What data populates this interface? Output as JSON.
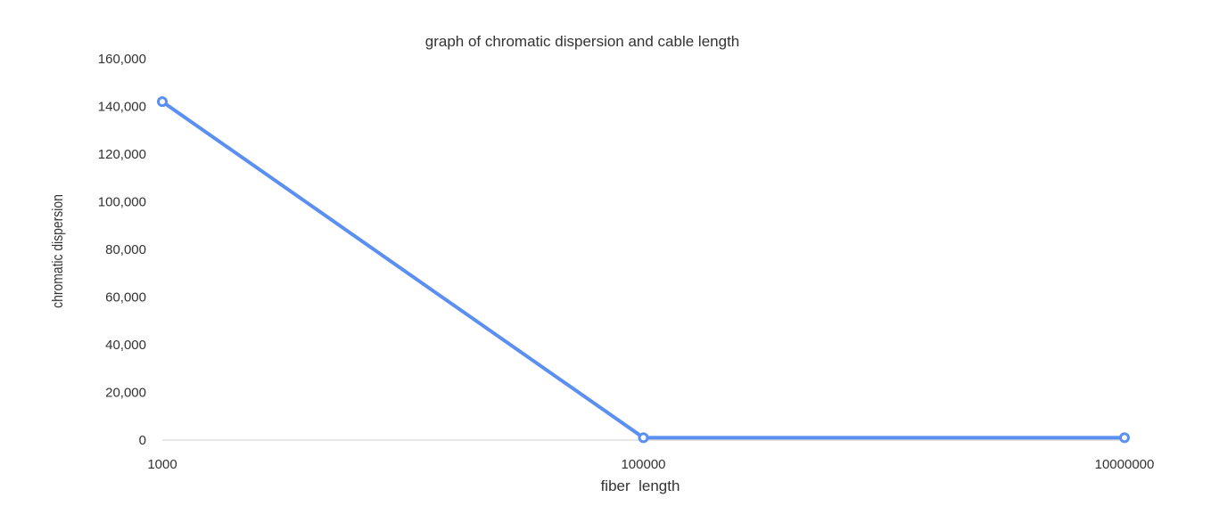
{
  "chart_data": {
    "type": "line",
    "title": "graph of chromatic dispersion and cable length",
    "xlabel": "fiber  length",
    "ylabel": "chromatic dispersion",
    "categories": [
      "1000",
      "100000",
      "10000000"
    ],
    "series": [
      {
        "values": [
          142000,
          1000,
          1000
        ]
      }
    ],
    "ylim": [
      0,
      160000
    ],
    "yticks": [
      "0",
      "20,000",
      "40,000",
      "60,000",
      "80,000",
      "100,000",
      "120,000",
      "140,000",
      "160,000"
    ],
    "grid": false,
    "legend": "none",
    "colors": {
      "series": "#5b8ff0",
      "axis": "#cccccc",
      "text": "#333333"
    }
  }
}
